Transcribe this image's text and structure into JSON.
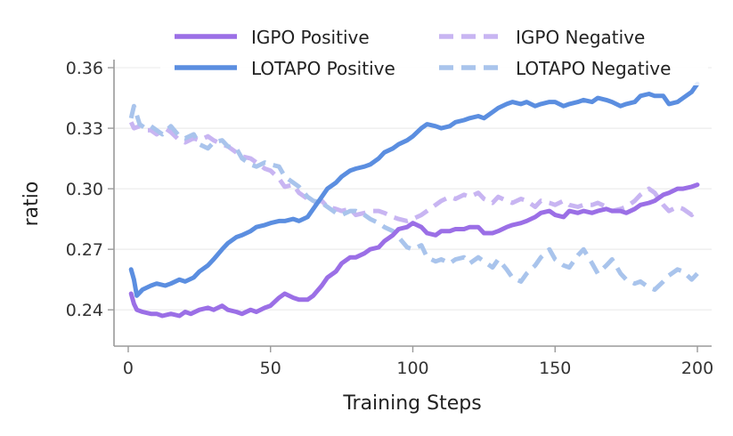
{
  "chart_data": {
    "type": "line",
    "title": "",
    "xlabel": "Training Steps",
    "ylabel": "ratio",
    "xlim": [
      -5,
      205
    ],
    "ylim": [
      0.222,
      0.364
    ],
    "xticks": [
      0,
      50,
      100,
      150,
      200
    ],
    "xtick_labels": [
      "0",
      "50",
      "100",
      "150",
      "200"
    ],
    "yticks": [
      0.24,
      0.27,
      0.3,
      0.33,
      0.36
    ],
    "ytick_labels": [
      "0.24",
      "0.27",
      "0.30",
      "0.33",
      "0.36"
    ],
    "grid": "horizontal",
    "legend": "top-right",
    "series": [
      {
        "name": "IGPO Positive",
        "color": "#9b6fe6",
        "style": "solid",
        "x": [
          1,
          2,
          3,
          5,
          8,
          10,
          12,
          15,
          18,
          20,
          22,
          25,
          28,
          30,
          33,
          35,
          38,
          40,
          43,
          45,
          48,
          50,
          53,
          55,
          58,
          60,
          63,
          65,
          68,
          70,
          73,
          75,
          78,
          80,
          83,
          85,
          88,
          90,
          93,
          95,
          98,
          100,
          103,
          105,
          108,
          110,
          113,
          115,
          118,
          120,
          123,
          125,
          128,
          130,
          133,
          135,
          138,
          140,
          143,
          145,
          148,
          150,
          153,
          155,
          158,
          160,
          163,
          165,
          168,
          170,
          173,
          175,
          178,
          180,
          183,
          185,
          188,
          190,
          193,
          195,
          198,
          200
        ],
        "y": [
          0.248,
          0.243,
          0.24,
          0.239,
          0.238,
          0.238,
          0.237,
          0.238,
          0.237,
          0.239,
          0.238,
          0.24,
          0.241,
          0.24,
          0.242,
          0.24,
          0.239,
          0.238,
          0.24,
          0.239,
          0.241,
          0.242,
          0.246,
          0.248,
          0.246,
          0.245,
          0.245,
          0.247,
          0.252,
          0.256,
          0.259,
          0.263,
          0.266,
          0.266,
          0.268,
          0.27,
          0.271,
          0.274,
          0.277,
          0.28,
          0.281,
          0.283,
          0.281,
          0.278,
          0.277,
          0.279,
          0.279,
          0.28,
          0.28,
          0.281,
          0.281,
          0.278,
          0.278,
          0.279,
          0.281,
          0.282,
          0.283,
          0.284,
          0.286,
          0.288,
          0.289,
          0.287,
          0.286,
          0.289,
          0.288,
          0.289,
          0.288,
          0.289,
          0.29,
          0.289,
          0.289,
          0.288,
          0.29,
          0.292,
          0.293,
          0.294,
          0.297,
          0.298,
          0.3,
          0.3,
          0.301,
          0.302
        ]
      },
      {
        "name": "IGPO Negative",
        "color": "#c8b5f2",
        "style": "dashed",
        "x": [
          1,
          2,
          4,
          6,
          8,
          10,
          13,
          15,
          18,
          20,
          23,
          25,
          28,
          30,
          33,
          35,
          38,
          40,
          43,
          45,
          48,
          50,
          53,
          55,
          58,
          60,
          63,
          65,
          68,
          70,
          73,
          75,
          78,
          80,
          83,
          85,
          88,
          90,
          93,
          95,
          98,
          100,
          103,
          105,
          108,
          110,
          113,
          115,
          118,
          120,
          123,
          125,
          128,
          130,
          133,
          135,
          138,
          140,
          143,
          145,
          148,
          150,
          153,
          155,
          158,
          160,
          163,
          165,
          168,
          170,
          173,
          175,
          178,
          180,
          183,
          185,
          188,
          190,
          193,
          195,
          198,
          200
        ],
        "y": [
          0.333,
          0.33,
          0.331,
          0.329,
          0.329,
          0.327,
          0.33,
          0.328,
          0.324,
          0.323,
          0.325,
          0.324,
          0.326,
          0.324,
          0.322,
          0.321,
          0.318,
          0.316,
          0.315,
          0.313,
          0.31,
          0.309,
          0.305,
          0.301,
          0.302,
          0.298,
          0.295,
          0.293,
          0.294,
          0.291,
          0.29,
          0.289,
          0.29,
          0.287,
          0.288,
          0.289,
          0.289,
          0.288,
          0.286,
          0.285,
          0.284,
          0.285,
          0.287,
          0.289,
          0.292,
          0.294,
          0.296,
          0.295,
          0.297,
          0.296,
          0.298,
          0.295,
          0.293,
          0.296,
          0.294,
          0.293,
          0.295,
          0.294,
          0.291,
          0.294,
          0.293,
          0.292,
          0.294,
          0.292,
          0.291,
          0.292,
          0.292,
          0.293,
          0.291,
          0.289,
          0.29,
          0.291,
          0.294,
          0.297,
          0.3,
          0.298,
          0.292,
          0.289,
          0.291,
          0.29,
          0.287,
          0.29
        ]
      },
      {
        "name": "LOTAPO Positive",
        "color": "#5b8ee0",
        "style": "solid",
        "x": [
          1,
          2,
          3,
          5,
          8,
          10,
          13,
          15,
          18,
          20,
          23,
          25,
          28,
          30,
          33,
          35,
          38,
          40,
          43,
          45,
          48,
          50,
          53,
          55,
          58,
          60,
          63,
          65,
          68,
          70,
          73,
          75,
          78,
          80,
          83,
          85,
          88,
          90,
          93,
          95,
          98,
          100,
          103,
          105,
          108,
          110,
          113,
          115,
          118,
          120,
          123,
          125,
          128,
          130,
          133,
          135,
          138,
          140,
          143,
          145,
          148,
          150,
          153,
          155,
          158,
          160,
          163,
          165,
          168,
          170,
          173,
          175,
          178,
          180,
          183,
          185,
          188,
          190,
          193,
          195,
          198,
          200
        ],
        "y": [
          0.26,
          0.255,
          0.247,
          0.25,
          0.252,
          0.253,
          0.252,
          0.253,
          0.255,
          0.254,
          0.256,
          0.259,
          0.262,
          0.265,
          0.27,
          0.273,
          0.276,
          0.277,
          0.279,
          0.281,
          0.282,
          0.283,
          0.284,
          0.284,
          0.285,
          0.284,
          0.286,
          0.29,
          0.296,
          0.3,
          0.303,
          0.306,
          0.309,
          0.31,
          0.311,
          0.312,
          0.315,
          0.318,
          0.32,
          0.322,
          0.324,
          0.326,
          0.33,
          0.332,
          0.331,
          0.33,
          0.331,
          0.333,
          0.334,
          0.335,
          0.336,
          0.335,
          0.338,
          0.34,
          0.342,
          0.343,
          0.342,
          0.343,
          0.341,
          0.342,
          0.343,
          0.343,
          0.341,
          0.342,
          0.343,
          0.344,
          0.343,
          0.345,
          0.344,
          0.343,
          0.341,
          0.342,
          0.343,
          0.346,
          0.347,
          0.346,
          0.346,
          0.342,
          0.343,
          0.345,
          0.348,
          0.352
        ]
      },
      {
        "name": "LOTAPO Negative",
        "color": "#a9c4ec",
        "style": "dashed",
        "x": [
          1,
          2,
          4,
          6,
          8,
          10,
          12,
          15,
          18,
          20,
          23,
          25,
          28,
          30,
          33,
          35,
          38,
          40,
          43,
          45,
          48,
          50,
          53,
          55,
          58,
          60,
          63,
          65,
          68,
          70,
          73,
          75,
          78,
          80,
          83,
          85,
          88,
          90,
          93,
          95,
          98,
          100,
          103,
          105,
          108,
          110,
          113,
          115,
          118,
          120,
          123,
          125,
          128,
          130,
          133,
          135,
          138,
          140,
          143,
          145,
          148,
          150,
          153,
          155,
          158,
          160,
          163,
          165,
          168,
          170,
          173,
          175,
          178,
          180,
          183,
          185,
          188,
          190,
          193,
          195,
          198,
          200
        ],
        "y": [
          0.335,
          0.341,
          0.332,
          0.33,
          0.331,
          0.329,
          0.327,
          0.331,
          0.326,
          0.325,
          0.327,
          0.322,
          0.32,
          0.323,
          0.324,
          0.321,
          0.32,
          0.315,
          0.312,
          0.311,
          0.313,
          0.312,
          0.311,
          0.306,
          0.303,
          0.301,
          0.296,
          0.294,
          0.293,
          0.291,
          0.288,
          0.287,
          0.289,
          0.289,
          0.287,
          0.285,
          0.283,
          0.281,
          0.279,
          0.276,
          0.271,
          0.27,
          0.272,
          0.266,
          0.264,
          0.265,
          0.263,
          0.265,
          0.266,
          0.263,
          0.266,
          0.264,
          0.261,
          0.265,
          0.26,
          0.256,
          0.254,
          0.258,
          0.262,
          0.266,
          0.27,
          0.265,
          0.262,
          0.261,
          0.267,
          0.27,
          0.263,
          0.258,
          0.262,
          0.265,
          0.258,
          0.255,
          0.253,
          0.254,
          0.251,
          0.25,
          0.254,
          0.257,
          0.26,
          0.259,
          0.255,
          0.258
        ]
      }
    ]
  }
}
